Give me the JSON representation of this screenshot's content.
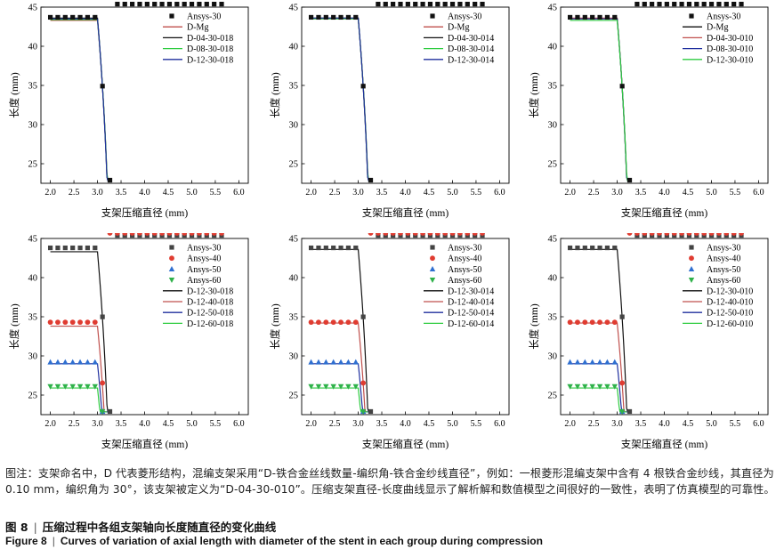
{
  "chart_data": [
    {
      "type": "line",
      "xlabel": "支架压缩直径 (mm)",
      "ylabel": "长度 (mm)",
      "xlim": [
        1.8,
        6.2
      ],
      "ylim": [
        22.5,
        45
      ],
      "xticks": [
        2.0,
        2.5,
        3.0,
        3.5,
        4.0,
        4.5,
        5.0,
        5.5,
        6.0
      ],
      "yticks": [
        25,
        30,
        35,
        40,
        45
      ],
      "legend": "top-right",
      "series": [
        {
          "name": "Ansys-30",
          "kind": "marker",
          "marker": "square",
          "color": "#111111",
          "L0": 43.7,
          "a": 0.905
        },
        {
          "name": "D-Mg",
          "kind": "line",
          "color": "#c0504d",
          "L0": 43.3,
          "a": 0.9
        },
        {
          "name": "D-04-30-018",
          "kind": "line",
          "color": "#111111",
          "L0": 43.6,
          "a": 0.905
        },
        {
          "name": "D-08-30-018",
          "kind": "line",
          "color": "#2ecc40",
          "L0": 43.4,
          "a": 0.9
        },
        {
          "name": "D-12-30-018",
          "kind": "line",
          "color": "#1f2f9e",
          "L0": 43.5,
          "a": 0.905
        }
      ]
    },
    {
      "type": "line",
      "xlabel": "支架压缩直径 (mm)",
      "ylabel": "长度 (mm)",
      "xlim": [
        1.8,
        6.2
      ],
      "ylim": [
        22.5,
        45
      ],
      "xticks": [
        2.0,
        2.5,
        3.0,
        3.5,
        4.0,
        4.5,
        5.0,
        5.5,
        6.0
      ],
      "yticks": [
        25,
        30,
        35,
        40,
        45
      ],
      "legend": "top-right",
      "series": [
        {
          "name": "Ansys-30",
          "kind": "marker",
          "marker": "square",
          "color": "#111111",
          "L0": 43.7,
          "a": 0.905
        },
        {
          "name": "D-Mg",
          "kind": "line",
          "color": "#c0504d",
          "L0": 43.5,
          "a": 0.9
        },
        {
          "name": "D-04-30-014",
          "kind": "line",
          "color": "#111111",
          "L0": 43.6,
          "a": 0.905
        },
        {
          "name": "D-08-30-014",
          "kind": "line",
          "color": "#2ecc40",
          "L0": 43.5,
          "a": 0.9
        },
        {
          "name": "D-12-30-014",
          "kind": "line",
          "color": "#1f2f9e",
          "L0": 43.6,
          "a": 0.905
        }
      ]
    },
    {
      "type": "line",
      "xlabel": "支架压缩直径 (mm)",
      "ylabel": "长度 (mm)",
      "xlim": [
        1.8,
        6.2
      ],
      "ylim": [
        22.5,
        45
      ],
      "xticks": [
        2.0,
        2.5,
        3.0,
        3.5,
        4.0,
        4.5,
        5.0,
        5.5,
        6.0
      ],
      "yticks": [
        25,
        30,
        35,
        40,
        45
      ],
      "legend": "top-right",
      "series": [
        {
          "name": "Ansys-30",
          "kind": "marker",
          "marker": "square",
          "color": "#111111",
          "L0": 43.7,
          "a": 0.905
        },
        {
          "name": "D-Mg",
          "kind": "line",
          "color": "#111111",
          "L0": 43.5,
          "a": 0.905
        },
        {
          "name": "D-04-30-010",
          "kind": "line",
          "color": "#c0504d",
          "L0": 43.6,
          "a": 0.905
        },
        {
          "name": "D-08-30-010",
          "kind": "line",
          "color": "#1f2f9e",
          "L0": 43.5,
          "a": 0.905
        },
        {
          "name": "D-12-30-010",
          "kind": "line",
          "color": "#2ecc40",
          "L0": 43.3,
          "a": 0.9
        }
      ]
    },
    {
      "type": "line",
      "xlabel": "支架压缩直径 (mm)",
      "ylabel": "长度 (mm)",
      "xlim": [
        1.8,
        6.2
      ],
      "ylim": [
        22.5,
        45
      ],
      "xticks": [
        2.0,
        2.5,
        3.0,
        3.5,
        4.0,
        4.5,
        5.0,
        5.5,
        6.0
      ],
      "yticks": [
        25,
        30,
        35,
        40,
        45
      ],
      "legend": "top-right",
      "series": [
        {
          "name": "Ansys-30",
          "kind": "marker",
          "marker": "square",
          "color": "#444444",
          "L0": 43.8,
          "a": 0.905
        },
        {
          "name": "Ansys-40",
          "kind": "marker",
          "marker": "circle",
          "color": "#e03c31",
          "L0": 34.3,
          "a": 0.93
        },
        {
          "name": "Ansys-50",
          "kind": "marker",
          "marker": "triangle-up",
          "color": "#2f6fd0",
          "L0": 29.2,
          "a": 0.95
        },
        {
          "name": "Ansys-60",
          "kind": "marker",
          "marker": "triangle-down",
          "color": "#2fb14a",
          "L0": 26.1,
          "a": 0.97
        },
        {
          "name": "D-12-30-018",
          "kind": "line",
          "color": "#111111",
          "L0": 43.3,
          "a": 0.9
        },
        {
          "name": "D-12-40-018",
          "kind": "line",
          "color": "#c0504d",
          "L0": 33.8,
          "a": 0.93
        },
        {
          "name": "D-12-50-018",
          "kind": "line",
          "color": "#1f2f9e",
          "L0": 29.0,
          "a": 0.95
        },
        {
          "name": "D-12-60-018",
          "kind": "line",
          "color": "#2ecc40",
          "L0": 25.9,
          "a": 0.97
        }
      ]
    },
    {
      "type": "line",
      "xlabel": "支架压缩直径 (mm)",
      "ylabel": "长度 (mm)",
      "xlim": [
        1.8,
        6.2
      ],
      "ylim": [
        22.5,
        45
      ],
      "xticks": [
        2.0,
        2.5,
        3.0,
        3.5,
        4.0,
        4.5,
        5.0,
        5.5,
        6.0
      ],
      "yticks": [
        25,
        30,
        35,
        40,
        45
      ],
      "legend": "top-right",
      "series": [
        {
          "name": "Ansys-30",
          "kind": "marker",
          "marker": "square",
          "color": "#444444",
          "L0": 43.8,
          "a": 0.905
        },
        {
          "name": "Ansys-40",
          "kind": "marker",
          "marker": "circle",
          "color": "#e03c31",
          "L0": 34.3,
          "a": 0.93
        },
        {
          "name": "Ansys-50",
          "kind": "marker",
          "marker": "triangle-up",
          "color": "#2f6fd0",
          "L0": 29.2,
          "a": 0.95
        },
        {
          "name": "Ansys-60",
          "kind": "marker",
          "marker": "triangle-down",
          "color": "#2fb14a",
          "L0": 26.1,
          "a": 0.97
        },
        {
          "name": "D-12-30-014",
          "kind": "line",
          "color": "#111111",
          "L0": 43.6,
          "a": 0.905
        },
        {
          "name": "D-12-40-014",
          "kind": "line",
          "color": "#c0504d",
          "L0": 34.2,
          "a": 0.93
        },
        {
          "name": "D-12-50-014",
          "kind": "line",
          "color": "#1f2f9e",
          "L0": 29.0,
          "a": 0.95
        },
        {
          "name": "D-12-60-014",
          "kind": "line",
          "color": "#2ecc40",
          "L0": 25.9,
          "a": 0.97
        }
      ]
    },
    {
      "type": "line",
      "xlabel": "支架压缩直径 (mm)",
      "ylabel": "长度 (mm)",
      "xlim": [
        1.8,
        6.2
      ],
      "ylim": [
        22.5,
        45
      ],
      "xticks": [
        2.0,
        2.5,
        3.0,
        3.5,
        4.0,
        4.5,
        5.0,
        5.5,
        6.0
      ],
      "yticks": [
        25,
        30,
        35,
        40,
        45
      ],
      "legend": "top-right",
      "series": [
        {
          "name": "Ansys-30",
          "kind": "marker",
          "marker": "square",
          "color": "#444444",
          "L0": 43.8,
          "a": 0.905
        },
        {
          "name": "Ansys-40",
          "kind": "marker",
          "marker": "circle",
          "color": "#e03c31",
          "L0": 34.3,
          "a": 0.93
        },
        {
          "name": "Ansys-50",
          "kind": "marker",
          "marker": "triangle-up",
          "color": "#2f6fd0",
          "L0": 29.2,
          "a": 0.95
        },
        {
          "name": "Ansys-60",
          "kind": "marker",
          "marker": "triangle-down",
          "color": "#2fb14a",
          "L0": 26.1,
          "a": 0.97
        },
        {
          "name": "D-12-30-010",
          "kind": "line",
          "color": "#111111",
          "L0": 43.6,
          "a": 0.905
        },
        {
          "name": "D-12-40-010",
          "kind": "line",
          "color": "#c0504d",
          "L0": 34.2,
          "a": 0.93
        },
        {
          "name": "D-12-50-010",
          "kind": "line",
          "color": "#1f2f9e",
          "L0": 29.0,
          "a": 0.95
        },
        {
          "name": "D-12-60-010",
          "kind": "line",
          "color": "#2ecc40",
          "L0": 25.9,
          "a": 0.97
        }
      ]
    }
  ],
  "note": "图注：支架命名中，D 代表菱形结构，混编支架采用“D-铁合金丝线数量-编织角-铁合金纱线直径”，例如：一根菱形混编支架中含有 4 根铁合金纱线，其直径为 0.10 mm，编织角为 30°，该支架被定义为“D-04-30-010”。压缩支架直径-长度曲线显示了解析解和数值模型之间很好的一致性，表明了仿真模型的可靠性。",
  "caption": {
    "cn_label": "图 8",
    "cn_text": "压缩过程中各组支架轴向长度随直径的变化曲线",
    "en_label": "Figure 8",
    "en_text": "Curves of variation of axial length with diameter of the stent in each group during compression"
  }
}
